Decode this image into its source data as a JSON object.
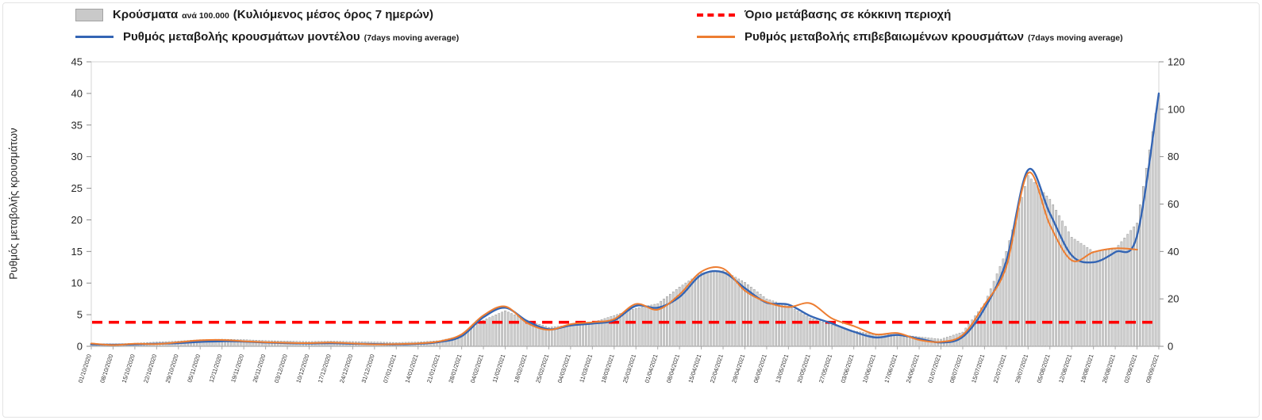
{
  "legend": {
    "bars": {
      "label": "Κρούσματα",
      "label_small": "ανά 100.000",
      "label_rest": "(Κυλιόμενος μέσος όρος 7 ημερών)"
    },
    "threshold": {
      "label": "Όριο μετάβασης σε κόκκινη περιοχή"
    },
    "model": {
      "label": "Ρυθμός μεταβολής κρουσμάτων μοντέλου",
      "suffix": "(7days moving average)"
    },
    "confirmed": {
      "label": "Ρυθμός μεταβολής επιβεβαιωμένων κρουσμάτων",
      "suffix": "(7days moving average)"
    }
  },
  "chart_data": {
    "type": "combo",
    "x_labels": [
      "01/10/2020",
      "08/10/2020",
      "15/10/2020",
      "22/10/2020",
      "29/10/2020",
      "05/11/2020",
      "12/11/2020",
      "19/11/2020",
      "26/11/2020",
      "03/12/2020",
      "10/12/2020",
      "17/12/2020",
      "24/12/2020",
      "31/12/2020",
      "07/01/2021",
      "14/01/2021",
      "21/01/2021",
      "28/01/2021",
      "04/02/2021",
      "11/02/2021",
      "18/02/2021",
      "25/02/2021",
      "04/03/2021",
      "11/03/2021",
      "18/03/2021",
      "25/03/2021",
      "01/04/2021",
      "08/04/2021",
      "15/04/2021",
      "22/04/2021",
      "29/04/2021",
      "06/05/2021",
      "13/05/2021",
      "20/05/2021",
      "27/05/2021",
      "03/06/2021",
      "10/06/2021",
      "17/06/2021",
      "24/06/2021",
      "01/07/2021",
      "08/07/2021",
      "15/07/2021",
      "22/07/2021",
      "29/07/2021",
      "05/08/2021",
      "12/08/2021",
      "19/08/2021",
      "26/08/2021",
      "02/09/2021",
      "09/09/2021"
    ],
    "left_axis": {
      "label": "Ρυθμός μεταβολής κρουσμάτων",
      "min": 0,
      "max": 45,
      "ticks": [
        0,
        5,
        10,
        15,
        20,
        25,
        30,
        35,
        40,
        45
      ]
    },
    "right_axis": {
      "min": 0,
      "max": 120,
      "ticks": [
        0,
        20,
        40,
        60,
        80,
        100,
        120
      ]
    },
    "threshold": {
      "value": 3.8,
      "color": "#ff0000",
      "label": "Όριο μετάβασης σε κόκκινη περιοχή"
    },
    "series": [
      {
        "name": "Κρούσματα ανά 100.000 (Κυλιόμενος μέσος όρος 7 ημερών)",
        "type": "bar",
        "axis": "right",
        "color": "#d4d4d4",
        "border": "#949494",
        "values": [
          1.2,
          1.0,
          1.3,
          1.8,
          2.2,
          2.8,
          3.0,
          2.8,
          2.4,
          2.2,
          2.0,
          2.2,
          2.0,
          1.8,
          1.6,
          1.8,
          2.4,
          4.5,
          11,
          15,
          11,
          8,
          9,
          10,
          13,
          16,
          18,
          25,
          31,
          32,
          27,
          20,
          17,
          12,
          9,
          6.5,
          5,
          5,
          4,
          3,
          6,
          18,
          40,
          72,
          62,
          46,
          40,
          41,
          52,
          106
        ]
      },
      {
        "name": "Ρυθμός μεταβολής κρουσμάτων μοντέλου (7days moving average)",
        "type": "line",
        "axis": "left",
        "color": "#3465b4",
        "values": [
          0.3,
          0.25,
          0.3,
          0.4,
          0.5,
          0.7,
          0.8,
          0.75,
          0.6,
          0.5,
          0.45,
          0.5,
          0.4,
          0.35,
          0.3,
          0.4,
          0.7,
          1.6,
          4.6,
          6.1,
          4.0,
          2.7,
          3.3,
          3.6,
          4.1,
          6.4,
          6.1,
          7.8,
          11.3,
          11.7,
          9.2,
          6.9,
          6.6,
          4.8,
          3.6,
          2.3,
          1.4,
          1.8,
          1.2,
          0.6,
          1.5,
          6.0,
          13.5,
          27.9,
          21.0,
          14.4,
          13.3,
          14.9,
          17.5,
          40.0
        ]
      },
      {
        "name": "Ρυθμός μεταβολής επιβεβαιωμένων κρουσμάτων (7days moving average)",
        "type": "line",
        "axis": "left",
        "color": "#ed7d31",
        "values": [
          0.45,
          0.2,
          0.4,
          0.35,
          0.65,
          0.95,
          1.0,
          0.8,
          0.65,
          0.55,
          0.5,
          0.6,
          0.45,
          0.3,
          0.35,
          0.45,
          0.8,
          1.9,
          4.9,
          6.3,
          3.7,
          2.6,
          3.5,
          3.8,
          4.3,
          6.7,
          5.8,
          8.2,
          11.8,
          12.3,
          8.8,
          7.0,
          6.2,
          6.8,
          4.4,
          3.2,
          1.9,
          2.1,
          1.0,
          0.7,
          1.8,
          6.6,
          12.6,
          27.4,
          19.2,
          13.6,
          14.9,
          15.5,
          15.3,
          null
        ]
      }
    ]
  }
}
